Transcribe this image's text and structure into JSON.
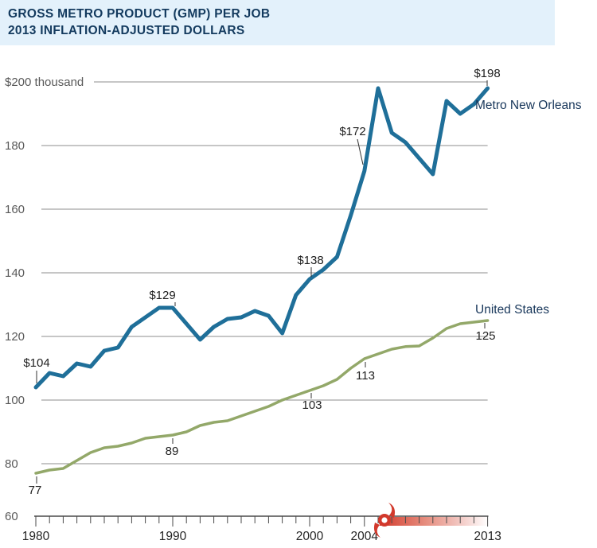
{
  "banner": {
    "title_line1": "GROSS METRO PRODUCT (GMP) PER JOB",
    "title_line2": "2013 INFLATION-ADJUSTED DOLLARS"
  },
  "colors": {
    "banner_bg": "#e3f1fb",
    "banner_text": "#133a5e",
    "metro_line": "#1f6f99",
    "us_line": "#93a869",
    "gridline": "#8c8c8c",
    "hurricane_red": "#d2392c"
  },
  "chart_data": {
    "type": "line",
    "title": "GROSS METRO PRODUCT (GMP) PER JOB",
    "subtitle": "2013 INFLATION-ADJUSTED DOLLARS",
    "xlabel": "",
    "ylabel": "$ thousand (2013 inflation-adjusted)",
    "xlim": [
      1980,
      2013
    ],
    "ylim": [
      60,
      200
    ],
    "grid": true,
    "x": [
      1980,
      1981,
      1982,
      1983,
      1984,
      1985,
      1986,
      1987,
      1988,
      1989,
      1990,
      1991,
      1992,
      1993,
      1994,
      1995,
      1996,
      1997,
      1998,
      1999,
      2000,
      2001,
      2002,
      2003,
      2004,
      2005,
      2006,
      2007,
      2008,
      2009,
      2010,
      2011,
      2012,
      2013
    ],
    "series": [
      {
        "name": "Metro New Orleans",
        "color": "#1f6f99",
        "values": [
          104,
          108.5,
          107.5,
          111.5,
          110.5,
          115.5,
          116.5,
          123,
          126,
          129,
          129,
          124,
          119,
          123,
          125.5,
          126,
          128,
          126.5,
          121,
          133,
          138,
          141,
          145,
          158,
          172,
          198,
          184,
          181,
          176,
          171,
          194,
          190,
          193,
          198
        ]
      },
      {
        "name": "United States",
        "color": "#93a869",
        "values": [
          77,
          78,
          78.5,
          81,
          83.5,
          85,
          85.5,
          86.5,
          88,
          88.5,
          89,
          90,
          92,
          93,
          93.5,
          95,
          96.5,
          98,
          100,
          101.5,
          103,
          104.5,
          106.5,
          110,
          113,
          114.5,
          116,
          116.8,
          117,
          119.5,
          122.5,
          124,
          124.5,
          125
        ]
      }
    ],
    "yticks": [
      {
        "value": 200,
        "label": "$200 thousand"
      },
      {
        "value": 180,
        "label": "180"
      },
      {
        "value": 160,
        "label": "160"
      },
      {
        "value": 140,
        "label": "140"
      },
      {
        "value": 120,
        "label": "120"
      },
      {
        "value": 100,
        "label": "100"
      },
      {
        "value": 80,
        "label": "80"
      },
      {
        "value": 60,
        "label": "60"
      }
    ],
    "xticks": [
      {
        "year": 1980,
        "label": "1980"
      },
      {
        "year": 1990,
        "label": "1990"
      },
      {
        "year": 2000,
        "label": "2000"
      },
      {
        "year": 2004,
        "label": "2004"
      },
      {
        "year": 2013,
        "label": "2013"
      }
    ],
    "annotations": [
      {
        "series": "Metro New Orleans",
        "year": 1980,
        "value": 104,
        "label": "$104"
      },
      {
        "series": "Metro New Orleans",
        "year": 1990,
        "value": 129,
        "label": "$129"
      },
      {
        "series": "Metro New Orleans",
        "year": 2000,
        "value": 138,
        "label": "$138"
      },
      {
        "series": "Metro New Orleans",
        "year": 2004,
        "value": 172,
        "label": "$172"
      },
      {
        "series": "Metro New Orleans",
        "year": 2013,
        "value": 198,
        "label": "$198"
      },
      {
        "series": "United States",
        "year": 1980,
        "value": 77,
        "label": "77"
      },
      {
        "series": "United States",
        "year": 1990,
        "value": 89,
        "label": "89"
      },
      {
        "series": "United States",
        "year": 2000,
        "value": 103,
        "label": "103"
      },
      {
        "series": "United States",
        "year": 2004,
        "value": 113,
        "label": "113"
      },
      {
        "series": "United States",
        "year": 2013,
        "value": 125,
        "label": "125"
      }
    ],
    "event_marker": {
      "type": "hurricane",
      "year": 2005.6,
      "color": "#d2392c"
    },
    "legend_position": "inline-right"
  }
}
